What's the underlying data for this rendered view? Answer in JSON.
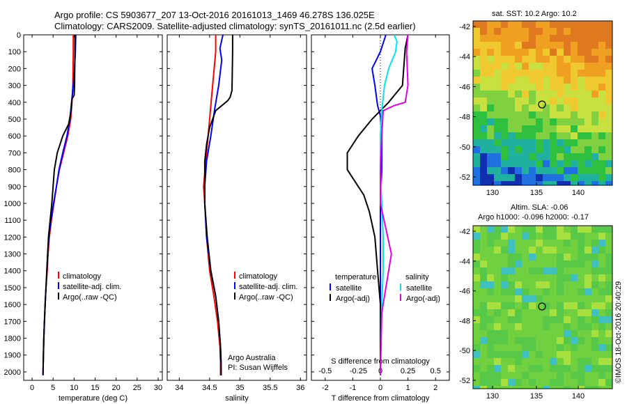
{
  "header": {
    "line1": "Argo profile: CS 5903677_207 13-Oct-2016 20161013_1469 46.278S 136.025E",
    "line2": "Climatology: CARS2009. Satellite-adjusted climatology: synTS_20161011.nc (2.5d earlier)"
  },
  "credit": "Argo Australia",
  "pi": "PI: Susan Wijffels",
  "copyright": "©IMOS 18-Oct-2016 20:40:29",
  "colors": {
    "climatology": "#ff0000",
    "satellite": "#0000ff",
    "argo": "#000000",
    "cyan": "#00e5ee",
    "magenta": "#e000e0"
  },
  "chart_data": [
    {
      "type": "line",
      "xlabel": "temperature (deg C)",
      "xlim": [
        -2,
        31
      ],
      "xticks": [
        0,
        5,
        10,
        15,
        20,
        25,
        30
      ],
      "ylim": [
        0,
        2050
      ],
      "yticks": [
        0,
        100,
        200,
        300,
        400,
        500,
        600,
        700,
        800,
        900,
        1000,
        1100,
        1200,
        1300,
        1400,
        1500,
        1600,
        1700,
        1800,
        1900,
        2000
      ],
      "legend": [
        "climatology",
        "satellite-adj. clim.",
        "Argo(..raw -QC)"
      ],
      "series": [
        {
          "name": "climatology",
          "color": "#ff0000",
          "points": [
            [
              9.8,
              0
            ],
            [
              9.8,
              100
            ],
            [
              9.7,
              300
            ],
            [
              9.5,
              400
            ],
            [
              9.2,
              500
            ],
            [
              8.5,
              600
            ],
            [
              7.5,
              700
            ],
            [
              6.5,
              800
            ],
            [
              5.8,
              900
            ],
            [
              5.2,
              1000
            ],
            [
              4.6,
              1100
            ],
            [
              4.1,
              1200
            ],
            [
              3.8,
              1300
            ],
            [
              3.6,
              1400
            ],
            [
              3.3,
              1500
            ],
            [
              3.1,
              1600
            ],
            [
              2.95,
              1700
            ],
            [
              2.8,
              1800
            ],
            [
              2.7,
              1900
            ],
            [
              2.6,
              2020
            ]
          ]
        },
        {
          "name": "satellite-adj. clim.",
          "color": "#0000ff",
          "points": [
            [
              10.4,
              0
            ],
            [
              10.3,
              100
            ],
            [
              10.1,
              200
            ],
            [
              9.8,
              300
            ],
            [
              9.4,
              400
            ],
            [
              9.0,
              500
            ],
            [
              8.3,
              600
            ],
            [
              7.3,
              700
            ],
            [
              6.4,
              800
            ],
            [
              5.8,
              900
            ],
            [
              5.1,
              1000
            ],
            [
              4.5,
              1100
            ],
            [
              4.0,
              1200
            ],
            [
              3.7,
              1300
            ],
            [
              3.5,
              1400
            ],
            [
              3.3,
              1500
            ],
            [
              3.1,
              1600
            ],
            [
              2.95,
              1700
            ],
            [
              2.8,
              1800
            ],
            [
              2.7,
              1900
            ],
            [
              2.6,
              2020
            ]
          ]
        },
        {
          "name": "Argo(..raw -QC)",
          "color": "#000000",
          "points": [
            [
              10.2,
              0
            ],
            [
              10.2,
              100
            ],
            [
              10.1,
              300
            ],
            [
              10.0,
              360
            ],
            [
              9.5,
              380
            ],
            [
              9.3,
              450
            ],
            [
              8.7,
              530
            ],
            [
              7.3,
              600
            ],
            [
              6.0,
              700
            ],
            [
              5.3,
              800
            ],
            [
              5.0,
              900
            ],
            [
              4.7,
              1000
            ],
            [
              4.3,
              1100
            ],
            [
              3.9,
              1200
            ],
            [
              3.7,
              1300
            ],
            [
              3.5,
              1400
            ],
            [
              3.3,
              1500
            ],
            [
              3.1,
              1600
            ],
            [
              2.95,
              1700
            ],
            [
              2.8,
              1800
            ],
            [
              2.7,
              1900
            ],
            [
              2.6,
              2020
            ]
          ]
        }
      ]
    },
    {
      "type": "line",
      "xlabel": "salinity",
      "xlim": [
        33.8,
        36.1
      ],
      "xticks": [
        34,
        34.5,
        35,
        35.5,
        36
      ],
      "ylim": [
        0,
        2050
      ],
      "legend": [
        "climatology",
        "satellite-adj. clim.",
        "Argo(..raw -QC)"
      ],
      "series": [
        {
          "name": "climatology",
          "color": "#ff0000",
          "points": [
            [
              34.6,
              0
            ],
            [
              34.6,
              100
            ],
            [
              34.55,
              300
            ],
            [
              34.5,
              500
            ],
            [
              34.45,
              700
            ],
            [
              34.4,
              900
            ],
            [
              34.42,
              1000
            ],
            [
              34.45,
              1200
            ],
            [
              34.5,
              1400
            ],
            [
              34.57,
              1550
            ],
            [
              34.63,
              1700
            ],
            [
              34.67,
              1850
            ],
            [
              34.68,
              1950
            ],
            [
              34.68,
              2020
            ]
          ]
        },
        {
          "name": "satellite-adj. clim.",
          "color": "#0000ff",
          "points": [
            [
              34.72,
              0
            ],
            [
              34.67,
              80
            ],
            [
              34.7,
              150
            ],
            [
              34.65,
              300
            ],
            [
              34.58,
              450
            ],
            [
              34.52,
              600
            ],
            [
              34.45,
              750
            ],
            [
              34.42,
              900
            ],
            [
              34.42,
              1000
            ],
            [
              34.45,
              1200
            ],
            [
              34.52,
              1400
            ],
            [
              34.6,
              1550
            ],
            [
              34.65,
              1700
            ],
            [
              34.68,
              1850
            ],
            [
              34.69,
              1950
            ],
            [
              34.69,
              2020
            ]
          ]
        },
        {
          "name": "Argo(..raw -QC)",
          "color": "#000000",
          "points": [
            [
              34.88,
              0
            ],
            [
              34.88,
              100
            ],
            [
              34.87,
              330
            ],
            [
              34.84,
              370
            ],
            [
              34.8,
              390
            ],
            [
              34.6,
              450
            ],
            [
              34.5,
              550
            ],
            [
              34.45,
              650
            ],
            [
              34.42,
              750
            ],
            [
              34.42,
              850
            ],
            [
              34.42,
              1000
            ],
            [
              34.46,
              1200
            ],
            [
              34.52,
              1400
            ],
            [
              34.6,
              1550
            ],
            [
              34.65,
              1700
            ],
            [
              34.68,
              1850
            ],
            [
              34.69,
              1950
            ],
            [
              34.69,
              2020
            ]
          ]
        }
      ]
    },
    {
      "type": "line",
      "xlabel": "T difference from climatology",
      "xlabel_top": "S difference from climatology",
      "xlim": [
        -2.5,
        2.5
      ],
      "xticks": [
        -2,
        -1,
        0,
        1,
        2
      ],
      "xticks_top": [
        -0.5,
        -0.25,
        0,
        0.25,
        0.5
      ],
      "ylim": [
        0,
        2050
      ],
      "legend_headers": [
        "temperature",
        "salinity"
      ],
      "legend": [
        "satellite",
        "Argo(-adj)",
        "satellite",
        "Argo(-adj)"
      ],
      "series": [
        {
          "name": "temperature satellite",
          "color": "#0000ff",
          "points": [
            [
              0.2,
              0
            ],
            [
              0,
              100
            ],
            [
              -0.3,
              200
            ],
            [
              -0.2,
              300
            ],
            [
              -0.1,
              420
            ],
            [
              0,
              480
            ],
            [
              0.05,
              600
            ],
            [
              0.05,
              800
            ],
            [
              0.0,
              1000
            ],
            [
              0.0,
              1300
            ],
            [
              0.0,
              1600
            ],
            [
              0.0,
              2020
            ]
          ]
        },
        {
          "name": "temperature Argo(-adj)",
          "color": "#000000",
          "points": [
            [
              1.0,
              0
            ],
            [
              0.9,
              80
            ],
            [
              0.8,
              300
            ],
            [
              0.3,
              400
            ],
            [
              -0.3,
              500
            ],
            [
              -0.8,
              600
            ],
            [
              -1.2,
              700
            ],
            [
              -1.2,
              800
            ],
            [
              -0.6,
              950
            ],
            [
              -0.4,
              1050
            ],
            [
              -0.2,
              1200
            ],
            [
              -0.1,
              1400
            ],
            [
              0,
              1600
            ],
            [
              0,
              2020
            ]
          ]
        },
        {
          "name": "salinity satellite",
          "color": "#00e5ee",
          "points": [
            [
              0.5,
              0
            ],
            [
              0.6,
              40
            ],
            [
              0.55,
              100
            ],
            [
              0.3,
              200
            ],
            [
              0.15,
              300
            ],
            [
              0.05,
              450
            ],
            [
              0,
              600
            ],
            [
              0,
              800
            ],
            [
              0.05,
              1000
            ],
            [
              0.1,
              1200
            ],
            [
              0.1,
              1400
            ],
            [
              0.05,
              1600
            ],
            [
              0,
              2020
            ]
          ]
        },
        {
          "name": "salinity Argo(-adj)",
          "color": "#e000e0",
          "points": [
            [
              1.0,
              0
            ],
            [
              0.95,
              100
            ],
            [
              1.0,
              300
            ],
            [
              0.9,
              400
            ],
            [
              0.5,
              420
            ],
            [
              0.1,
              450
            ],
            [
              0.05,
              600
            ],
            [
              0,
              800
            ],
            [
              0,
              1000
            ],
            [
              0.2,
              1150
            ],
            [
              0.4,
              1300
            ],
            [
              0.2,
              1500
            ],
            [
              0.05,
              1650
            ],
            [
              0,
              2020
            ]
          ]
        }
      ]
    }
  ],
  "maps": [
    {
      "title": "sat. SST: 10.2 Argo: 10.2",
      "yticks": [
        "-42",
        "-44",
        "-46",
        "-48",
        "-50",
        "-52"
      ],
      "xticks": [
        "130",
        "135",
        "140"
      ]
    },
    {
      "title1": "Altim. SLA: -0.06",
      "title2": "Argo h1000: -0.096 h2000: -0.17",
      "yticks": [
        "-42",
        "-44",
        "-46",
        "-48",
        "-50",
        "-52"
      ],
      "xticks": [
        "130",
        "135",
        "140"
      ]
    }
  ]
}
